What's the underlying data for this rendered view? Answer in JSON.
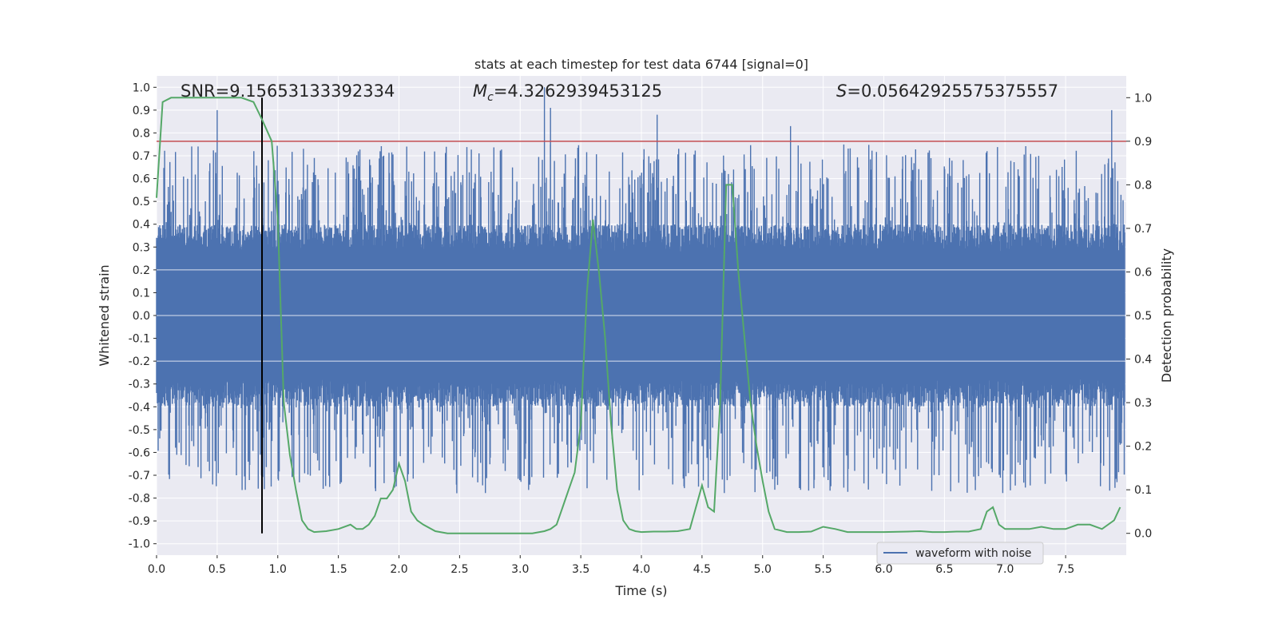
{
  "chart_data": {
    "type": "line",
    "title": "stats at each timestep for test data 6744 [signal=0]",
    "xlabel": "Time (s)",
    "ylabel": "Whitened strain",
    "y2label": "Detection probability",
    "xlim": [
      0.0,
      8.0
    ],
    "ylim": [
      -1.05,
      1.05
    ],
    "y2lim": [
      -0.05,
      1.05
    ],
    "x_ticks": [
      "0.0",
      "0.5",
      "1.0",
      "1.5",
      "2.0",
      "2.5",
      "3.0",
      "3.5",
      "4.0",
      "4.5",
      "5.0",
      "5.5",
      "6.0",
      "6.5",
      "7.0",
      "7.5"
    ],
    "y_ticks": [
      "-1.0",
      "-0.9",
      "-0.8",
      "-0.7",
      "-0.6",
      "-0.5",
      "-0.4",
      "-0.3",
      "-0.2",
      "-0.1",
      "0.0",
      "0.1",
      "0.2",
      "0.3",
      "0.4",
      "0.5",
      "0.6",
      "0.7",
      "0.8",
      "0.9",
      "1.0"
    ],
    "y2_ticks": [
      "0.0",
      "0.1",
      "0.2",
      "0.3",
      "0.4",
      "0.5",
      "0.6",
      "0.7",
      "0.8",
      "0.9",
      "1.0"
    ],
    "grid": true,
    "legend_position": "lower-right",
    "annotations": {
      "snr": "SNR=9.15653133392334",
      "mc_symbol": "M",
      "mc_sub": "c",
      "mc_value": "=4.3262939453125",
      "s_symbol": "S",
      "s_value": "=0.05642925575375557"
    },
    "threshold_y2": 0.9,
    "vline_x": 0.87,
    "series": [
      {
        "name": "waveform with noise",
        "axis": "left",
        "color": "#4c72b0",
        "description_envelope": {
          "core_half_width": 0.3,
          "spike_peaks_x": [
            0.5,
            3.2,
            3.25,
            4.13,
            5.23,
            7.88
          ],
          "spike_peaks_y": [
            0.9,
            1.0,
            0.91,
            0.88,
            0.83,
            0.9
          ]
        }
      },
      {
        "name": "",
        "axis": "right",
        "color": "#55a868",
        "x": [
          0.0,
          0.05,
          0.12,
          0.2,
          0.3,
          0.4,
          0.5,
          0.6,
          0.7,
          0.8,
          0.87,
          0.95,
          1.0,
          1.05,
          1.1,
          1.15,
          1.2,
          1.25,
          1.3,
          1.4,
          1.5,
          1.6,
          1.65,
          1.7,
          1.75,
          1.8,
          1.85,
          1.9,
          1.95,
          2.0,
          2.05,
          2.1,
          2.15,
          2.2,
          2.3,
          2.4,
          2.5,
          2.6,
          2.8,
          3.0,
          3.1,
          3.2,
          3.25,
          3.3,
          3.35,
          3.4,
          3.45,
          3.5,
          3.55,
          3.6,
          3.65,
          3.7,
          3.75,
          3.8,
          3.85,
          3.9,
          3.95,
          4.0,
          4.1,
          4.2,
          4.3,
          4.4,
          4.5,
          4.55,
          4.6,
          4.65,
          4.7,
          4.75,
          4.8,
          4.85,
          4.9,
          4.95,
          5.0,
          5.05,
          5.1,
          5.2,
          5.3,
          5.4,
          5.5,
          5.6,
          5.7,
          6.0,
          6.2,
          6.3,
          6.4,
          6.5,
          6.6,
          6.7,
          6.8,
          6.85,
          6.9,
          6.95,
          7.0,
          7.1,
          7.2,
          7.3,
          7.4,
          7.5,
          7.6,
          7.7,
          7.8,
          7.9,
          7.95
        ],
        "y": [
          0.77,
          0.99,
          1.0,
          1.0,
          1.0,
          1.0,
          1.0,
          1.0,
          1.0,
          0.99,
          0.95,
          0.9,
          0.72,
          0.3,
          0.18,
          0.1,
          0.03,
          0.01,
          0.003,
          0.005,
          0.01,
          0.02,
          0.01,
          0.01,
          0.02,
          0.04,
          0.08,
          0.08,
          0.1,
          0.16,
          0.12,
          0.05,
          0.03,
          0.02,
          0.005,
          0.0,
          0.0,
          0.0,
          0.0,
          0.0,
          0.0,
          0.005,
          0.01,
          0.02,
          0.06,
          0.1,
          0.14,
          0.25,
          0.55,
          0.72,
          0.6,
          0.45,
          0.25,
          0.1,
          0.03,
          0.01,
          0.005,
          0.003,
          0.004,
          0.004,
          0.005,
          0.01,
          0.11,
          0.06,
          0.05,
          0.3,
          0.8,
          0.8,
          0.6,
          0.45,
          0.3,
          0.2,
          0.12,
          0.05,
          0.01,
          0.003,
          0.003,
          0.004,
          0.015,
          0.01,
          0.003,
          0.003,
          0.004,
          0.005,
          0.003,
          0.003,
          0.004,
          0.004,
          0.01,
          0.05,
          0.06,
          0.02,
          0.01,
          0.01,
          0.01,
          0.015,
          0.01,
          0.01,
          0.02,
          0.02,
          0.01,
          0.03,
          0.06
        ]
      }
    ]
  },
  "legend": {
    "label": "waveform with noise"
  },
  "colors": {
    "axes_bg": "#eaeaf2",
    "grid": "#ffffff",
    "waveform": "#4c72b0",
    "probability": "#55a868",
    "threshold": "#c44e52",
    "vline": "#000000"
  }
}
